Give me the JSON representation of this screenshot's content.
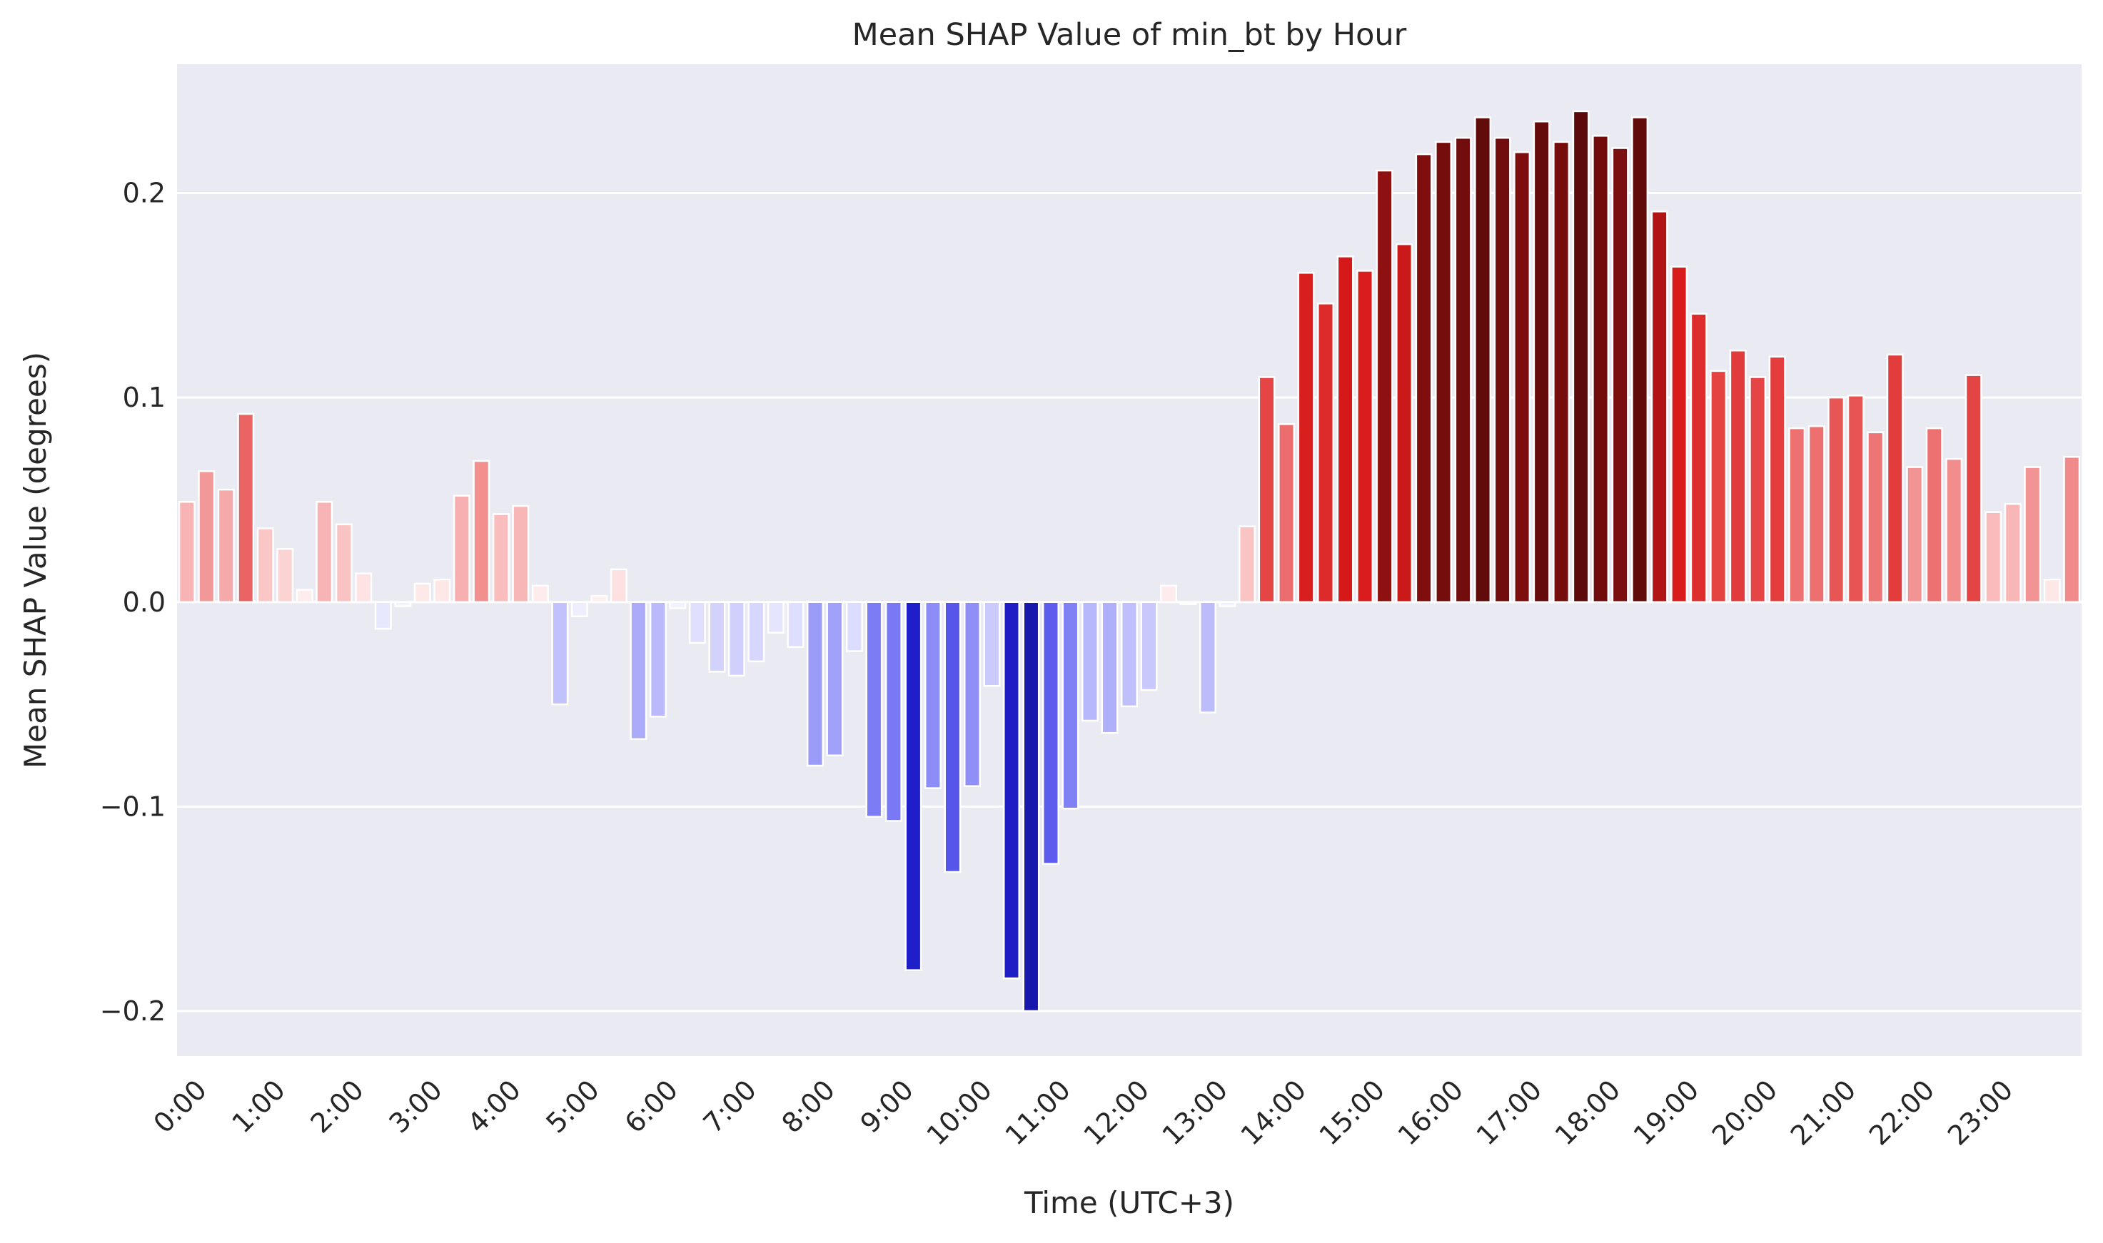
{
  "chart_data": {
    "type": "bar",
    "title": "Mean SHAP Value of min_bt by Hour",
    "xlabel": "Time (UTC+3)",
    "ylabel": "Mean SHAP Value (degrees)",
    "ylim": [
      -0.222,
      0.263
    ],
    "yticks": [
      -0.2,
      -0.1,
      0.0,
      0.1,
      0.2
    ],
    "ytick_labels": [
      "−0.2",
      "−0.1",
      "0.0",
      "0.1",
      "0.2"
    ],
    "xtick_labels": [
      "0:00",
      "1:00",
      "2:00",
      "3:00",
      "4:00",
      "5:00",
      "6:00",
      "7:00",
      "8:00",
      "9:00",
      "10:00",
      "11:00",
      "12:00",
      "13:00",
      "14:00",
      "15:00",
      "16:00",
      "17:00",
      "18:00",
      "19:00",
      "20:00",
      "21:00",
      "22:00",
      "23:00"
    ],
    "bars_per_hour": 4,
    "grid": true,
    "colormap": "blue-white-red diverging",
    "colors": {
      "background": "#eaeaf2",
      "grid": "#ffffff",
      "neg_extreme": "#0b0b70",
      "pos_extreme": "#5c0a0a"
    },
    "values": [
      0.049,
      0.064,
      0.055,
      0.092,
      0.036,
      0.026,
      0.006,
      0.049,
      0.038,
      0.014,
      -0.013,
      -0.002,
      0.009,
      0.011,
      0.052,
      0.069,
      0.043,
      0.047,
      0.008,
      -0.05,
      -0.007,
      0.003,
      0.016,
      -0.067,
      -0.056,
      -0.003,
      -0.02,
      -0.034,
      -0.036,
      -0.029,
      -0.015,
      -0.022,
      -0.08,
      -0.075,
      -0.024,
      -0.105,
      -0.107,
      -0.18,
      -0.091,
      -0.132,
      -0.09,
      -0.041,
      -0.184,
      -0.2,
      -0.128,
      -0.101,
      -0.058,
      -0.064,
      -0.051,
      -0.043,
      0.008,
      -0.001,
      -0.054,
      -0.002,
      0.037,
      0.11,
      0.087,
      0.161,
      0.146,
      0.169,
      0.162,
      0.211,
      0.175,
      0.219,
      0.225,
      0.227,
      0.237,
      0.227,
      0.22,
      0.235,
      0.225,
      0.24,
      0.228,
      0.222,
      0.237,
      0.191,
      0.164,
      0.141,
      0.113,
      0.123,
      0.11,
      0.12,
      0.085,
      0.086,
      0.1,
      0.101,
      0.083,
      0.121,
      0.066,
      0.085,
      0.07,
      0.111,
      0.044,
      0.048,
      0.066,
      0.011,
      0.071
    ]
  }
}
